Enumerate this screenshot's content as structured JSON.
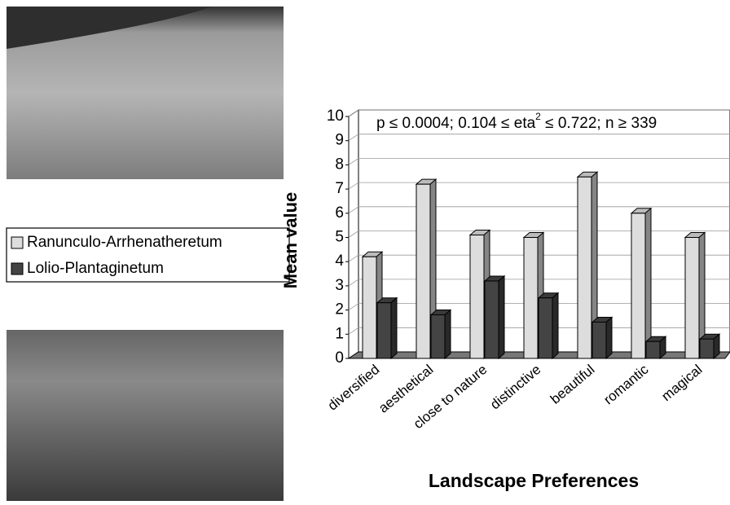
{
  "chart_data": {
    "type": "bar3d",
    "annotation": [
      "p ≤ 0.0004; 0.104 ≤ eta",
      "2",
      " ≤ 0.722; n ≥ 339"
    ],
    "y_label": "Mean value",
    "x_label": "Landscape Preferences",
    "categories": [
      "diversified",
      "aesthetical",
      "close to nature",
      "distinctive",
      "beautiful",
      "romantic",
      "magical"
    ],
    "series": [
      {
        "name": "Ranunculo-Arrhenatheretum",
        "color": "#dddddd",
        "values": [
          4.2,
          7.2,
          5.1,
          5.0,
          7.5,
          6.0,
          5.0
        ]
      },
      {
        "name": "Lolio-Plantaginetum",
        "color": "#444444",
        "values": [
          2.3,
          1.8,
          3.2,
          2.5,
          1.5,
          0.7,
          0.8
        ]
      }
    ],
    "ylim": [
      0,
      10
    ],
    "yticks": [
      0,
      1,
      2,
      3,
      4,
      5,
      6,
      7,
      8,
      9,
      10
    ],
    "grid": true
  }
}
